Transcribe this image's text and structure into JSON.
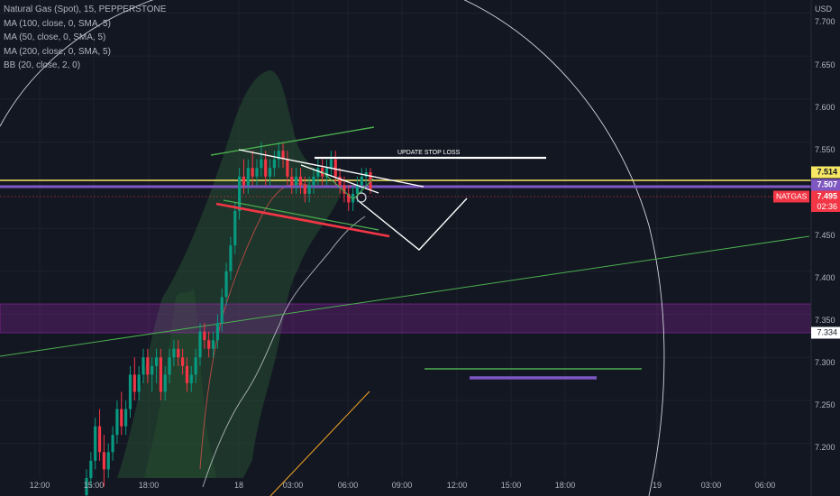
{
  "legend": {
    "title": "Natural Gas (Spot), 15, PEPPERSTONE",
    "indicators": [
      "MA (100, close, 0, SMA, 5)",
      "MA (50, close, 0, SMA, 5)",
      "MA (200, close, 0, SMA, 5)",
      "BB (20, close, 2, 0)"
    ]
  },
  "axis": {
    "currency": "USD",
    "y_ticks": [
      "7.700",
      "7.650",
      "7.600",
      "7.550",
      "7.450",
      "7.400",
      "7.350",
      "7.300",
      "7.250",
      "7.200"
    ],
    "x_ticks": [
      "12:00",
      "15:00",
      "18:00",
      "18",
      "03:00",
      "06:00",
      "09:00",
      "12:00",
      "15:00",
      "18:00",
      "19",
      "03:00",
      "06:00"
    ]
  },
  "price_labels": {
    "yellow": "7.514",
    "purple": "7.507",
    "symbol": "NATGAS",
    "current": "7.495",
    "countdown": "02:36",
    "zone": "7.334"
  },
  "annotation": "UPDATE STOP LOSS",
  "colors": {
    "background": "#131722",
    "up": "#089981",
    "down": "#f23645",
    "yellow_line": "#f5e663",
    "purple_line": "#7e57c2",
    "zone": "#9c27b0",
    "green_line": "#4caf50",
    "red_line": "#f23645",
    "white_line": "#ffffff"
  },
  "chart_data": {
    "type": "candlestick",
    "symbol": "Natural Gas (Spot)",
    "timeframe": "15",
    "ylim": [
      7.16,
      7.715
    ],
    "candles": [
      [
        7.14,
        7.17,
        7.12,
        7.16
      ],
      [
        7.16,
        7.19,
        7.15,
        7.18
      ],
      [
        7.18,
        7.23,
        7.17,
        7.22
      ],
      [
        7.22,
        7.24,
        7.18,
        7.19
      ],
      [
        7.19,
        7.21,
        7.15,
        7.17
      ],
      [
        7.17,
        7.2,
        7.16,
        7.19
      ],
      [
        7.19,
        7.22,
        7.18,
        7.21
      ],
      [
        7.21,
        7.25,
        7.2,
        7.24
      ],
      [
        7.24,
        7.26,
        7.21,
        7.22
      ],
      [
        7.22,
        7.25,
        7.21,
        7.24
      ],
      [
        7.24,
        7.29,
        7.23,
        7.28
      ],
      [
        7.28,
        7.3,
        7.25,
        7.26
      ],
      [
        7.26,
        7.29,
        7.25,
        7.28
      ],
      [
        7.28,
        7.31,
        7.27,
        7.3
      ],
      [
        7.3,
        7.31,
        7.27,
        7.28
      ],
      [
        7.28,
        7.3,
        7.26,
        7.29
      ],
      [
        7.29,
        7.31,
        7.27,
        7.3
      ],
      [
        7.3,
        7.31,
        7.25,
        7.26
      ],
      [
        7.26,
        7.29,
        7.25,
        7.28
      ],
      [
        7.28,
        7.31,
        7.27,
        7.3
      ],
      [
        7.3,
        7.32,
        7.29,
        7.31
      ],
      [
        7.31,
        7.32,
        7.29,
        7.3
      ],
      [
        7.3,
        7.31,
        7.28,
        7.29
      ],
      [
        7.29,
        7.3,
        7.26,
        7.27
      ],
      [
        7.27,
        7.29,
        7.26,
        7.28
      ],
      [
        7.28,
        7.31,
        7.27,
        7.3
      ],
      [
        7.3,
        7.34,
        7.29,
        7.33
      ],
      [
        7.33,
        7.34,
        7.31,
        7.32
      ],
      [
        7.32,
        7.33,
        7.3,
        7.31
      ],
      [
        7.31,
        7.33,
        7.3,
        7.32
      ],
      [
        7.32,
        7.35,
        7.31,
        7.34
      ],
      [
        7.34,
        7.38,
        7.33,
        7.37
      ],
      [
        7.37,
        7.41,
        7.36,
        7.4
      ],
      [
        7.4,
        7.44,
        7.39,
        7.43
      ],
      [
        7.43,
        7.48,
        7.42,
        7.47
      ],
      [
        7.47,
        7.52,
        7.46,
        7.51
      ],
      [
        7.51,
        7.53,
        7.49,
        7.5
      ],
      [
        7.5,
        7.53,
        7.49,
        7.52
      ],
      [
        7.52,
        7.54,
        7.5,
        7.51
      ],
      [
        7.51,
        7.53,
        7.5,
        7.52
      ],
      [
        7.52,
        7.55,
        7.51,
        7.53
      ],
      [
        7.53,
        7.54,
        7.5,
        7.51
      ],
      [
        7.51,
        7.53,
        7.5,
        7.52
      ],
      [
        7.52,
        7.54,
        7.51,
        7.53
      ],
      [
        7.53,
        7.55,
        7.52,
        7.54
      ],
      [
        7.54,
        7.55,
        7.52,
        7.53
      ],
      [
        7.53,
        7.54,
        7.5,
        7.51
      ],
      [
        7.51,
        7.52,
        7.49,
        7.5
      ],
      [
        7.5,
        7.52,
        7.49,
        7.51
      ],
      [
        7.51,
        7.52,
        7.49,
        7.5
      ],
      [
        7.5,
        7.51,
        7.48,
        7.49
      ],
      [
        7.49,
        7.51,
        7.48,
        7.5
      ],
      [
        7.5,
        7.52,
        7.49,
        7.51
      ],
      [
        7.51,
        7.53,
        7.5,
        7.52
      ],
      [
        7.52,
        7.53,
        7.5,
        7.51
      ],
      [
        7.51,
        7.53,
        7.5,
        7.52
      ],
      [
        7.52,
        7.54,
        7.51,
        7.53
      ],
      [
        7.53,
        7.54,
        7.5,
        7.51
      ],
      [
        7.51,
        7.52,
        7.49,
        7.5
      ],
      [
        7.5,
        7.51,
        7.48,
        7.49
      ],
      [
        7.49,
        7.5,
        7.47,
        7.48
      ],
      [
        7.48,
        7.5,
        7.47,
        7.49
      ],
      [
        7.49,
        7.51,
        7.48,
        7.5
      ],
      [
        7.5,
        7.52,
        7.49,
        7.51
      ],
      [
        7.51,
        7.52,
        7.5,
        7.515
      ],
      [
        7.515,
        7.52,
        7.49,
        7.495
      ]
    ],
    "horizontal_levels": {
      "yellow": 7.514,
      "purple": 7.507,
      "current": 7.495
    },
    "zone": [
      7.334,
      7.366
    ]
  }
}
